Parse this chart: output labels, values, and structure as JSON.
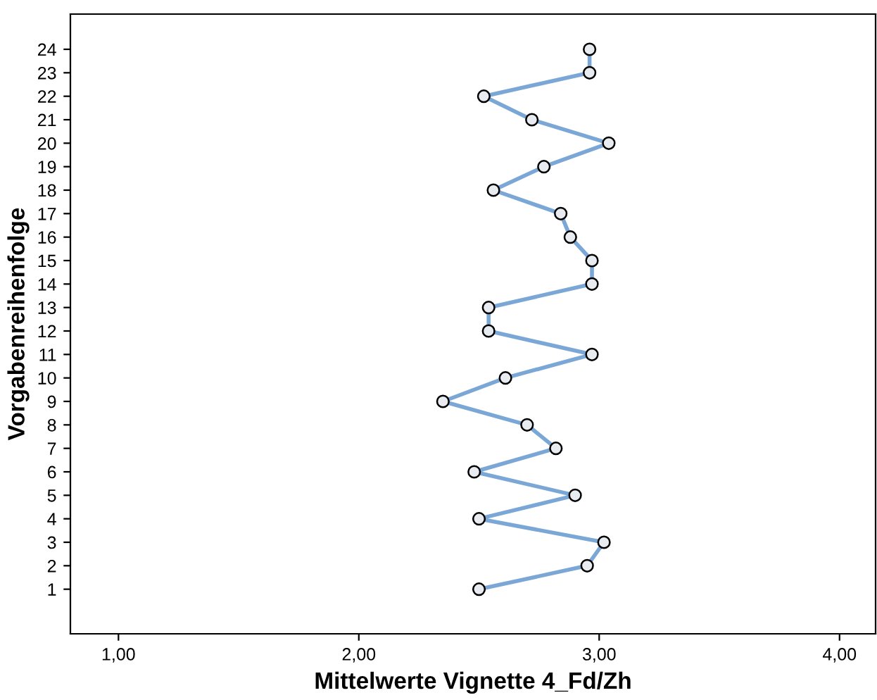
{
  "chart_data": {
    "type": "line",
    "orientation": "horizontal",
    "categories": [
      "24",
      "23",
      "22",
      "21",
      "20",
      "19",
      "18",
      "17",
      "16",
      "15",
      "14",
      "13",
      "12",
      "11",
      "10",
      "9",
      "8",
      "7",
      "6",
      "5",
      "4",
      "3",
      "2",
      "1"
    ],
    "series": [
      {
        "color": "#7ba7d6",
        "values": [
          2.96,
          2.96,
          2.52,
          2.72,
          3.04,
          2.77,
          2.56,
          2.84,
          2.88,
          2.97,
          2.97,
          2.54,
          2.54,
          2.97,
          2.61,
          2.35,
          2.7,
          2.82,
          2.48,
          2.9,
          2.5,
          3.02,
          2.95,
          2.5
        ]
      }
    ],
    "xlim": [
      0.8,
      4.15
    ],
    "xticks": [
      {
        "value": 1,
        "label": "1,00"
      },
      {
        "value": 2,
        "label": "2,00"
      },
      {
        "value": 3,
        "label": "3,00"
      },
      {
        "value": 4,
        "label": "4,00"
      }
    ],
    "xlabel": "Mittelwerte Vignette 4_Fd/Zh",
    "ylabel": "Vorgabenreihenfolge",
    "marker": "circle",
    "grid": false
  }
}
